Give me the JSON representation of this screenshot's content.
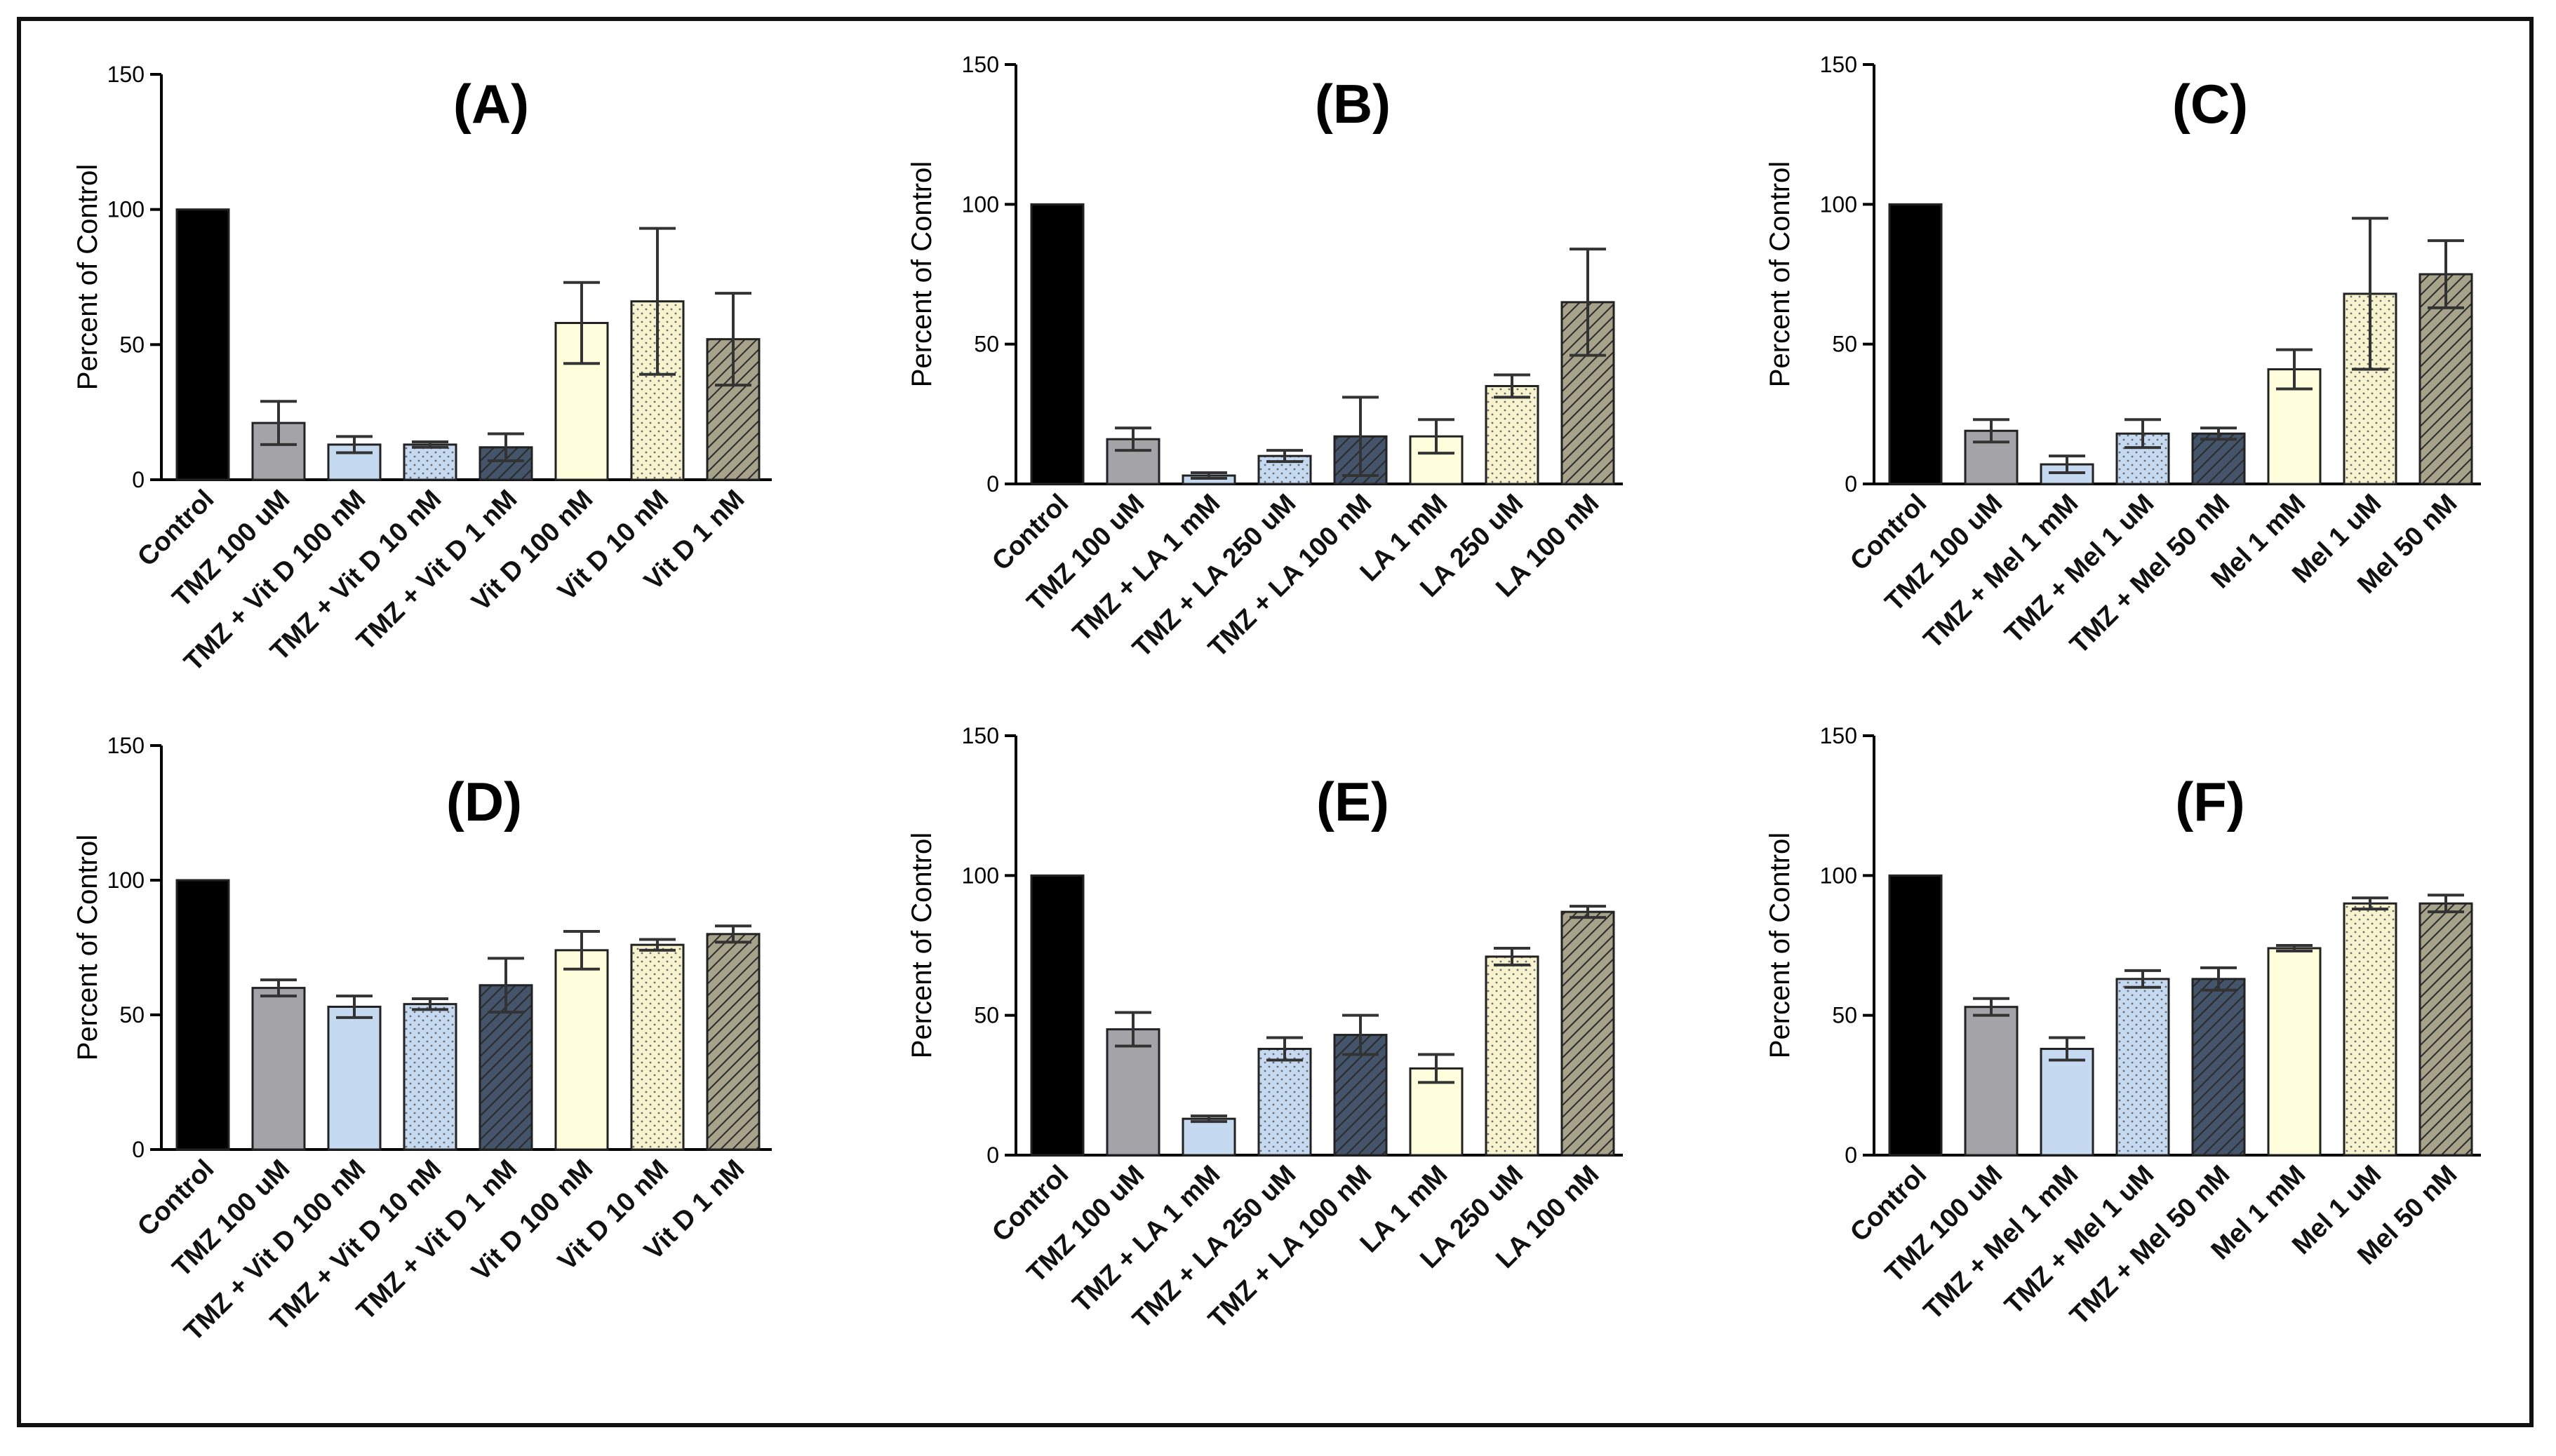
{
  "figure": {
    "ylabel": "Percent of  Control",
    "yticks": [
      0,
      50,
      100,
      150
    ],
    "ylim": [
      0,
      150
    ]
  },
  "styles": {
    "fills": [
      "#000000",
      "#a4a4a8",
      "#c5d9f1",
      "#c5d9f1",
      "#44546a",
      "#fefedc",
      "#f7f3cf",
      "#a7a28a"
    ],
    "patterns": [
      "solid",
      "solid",
      "solid",
      "dots",
      "hatch",
      "solid",
      "dots",
      "hatch"
    ],
    "stroke": "#222222",
    "errorbar": "#333333"
  },
  "chart_data": [
    {
      "type": "bar",
      "title": "(A)",
      "ylabel": "Percent of  Control",
      "ylim": [
        0,
        150
      ],
      "categories": [
        "Control",
        "TMZ 100 uM",
        "TMZ + Vit D 100 nM",
        "TMZ + Vit D 10 nM",
        "TMZ + Vit D 1 nM",
        "Vit D 100 nM",
        "Vit D 10 nM",
        "Vit D 1 nM"
      ],
      "values": [
        100,
        21,
        13,
        13,
        12,
        58,
        66,
        52
      ],
      "errors": [
        0,
        8,
        3,
        1,
        5,
        15,
        27,
        17
      ]
    },
    {
      "type": "bar",
      "title": "(B)",
      "ylabel": "Percent of  Control",
      "ylim": [
        0,
        150
      ],
      "categories": [
        "Control",
        "TMZ 100 uM",
        "TMZ + LA 1 mM",
        "TMZ + LA 250 uM",
        "TMZ + LA 100 nM",
        "LA 1 mM",
        "LA 250 uM",
        "LA 100 nM"
      ],
      "values": [
        100,
        16,
        3,
        10,
        17,
        17,
        35,
        65
      ],
      "errors": [
        0,
        4,
        1,
        2,
        14,
        6,
        4,
        19
      ]
    },
    {
      "type": "bar",
      "title": "(C)",
      "ylabel": "Percent of  Control",
      "ylim": [
        0,
        150
      ],
      "categories": [
        "Control",
        "TMZ 100 uM",
        "TMZ + Mel 1 mM",
        "TMZ + Mel 1 uM",
        "TMZ + Mel 50 nM",
        "Mel 1 mM",
        "Mel 1 uM",
        "Mel 50 nM"
      ],
      "values": [
        100,
        19,
        7,
        18,
        18,
        41,
        68,
        75
      ],
      "errors": [
        0,
        4,
        3,
        5,
        2,
        7,
        27,
        12
      ]
    },
    {
      "type": "bar",
      "title": "(D)",
      "ylabel": "Percent of  Control",
      "ylim": [
        0,
        150
      ],
      "categories": [
        "Control",
        "TMZ 100 uM",
        "TMZ + Vit D 100 nM",
        "TMZ + Vit D 10 nM",
        "TMZ + Vit D 1 nM",
        "Vit D 100 nM",
        "Vit D 10 nM",
        "Vit D 1 nM"
      ],
      "values": [
        100,
        60,
        53,
        54,
        61,
        74,
        76,
        80
      ],
      "errors": [
        0,
        3,
        4,
        2,
        10,
        7,
        2,
        3
      ]
    },
    {
      "type": "bar",
      "title": "(E)",
      "ylabel": "Percent of  Control",
      "ylim": [
        0,
        150
      ],
      "categories": [
        "Control",
        "TMZ 100 uM",
        "TMZ + LA 1 mM",
        "TMZ + LA 250 uM",
        "TMZ + LA 100 nM",
        "LA 1 mM",
        "LA 250 uM",
        "LA 100 nM"
      ],
      "values": [
        100,
        45,
        13,
        38,
        43,
        31,
        71,
        87
      ],
      "errors": [
        0,
        6,
        1,
        4,
        7,
        5,
        3,
        2
      ]
    },
    {
      "type": "bar",
      "title": "(F)",
      "ylabel": "Percent of  Control",
      "ylim": [
        0,
        150
      ],
      "categories": [
        "Control",
        "TMZ 100 uM",
        "TMZ + Mel 1 mM",
        "TMZ + Mel 1 uM",
        "TMZ + Mel 50 nM",
        "Mel 1 mM",
        "Mel 1 uM",
        "Mel 50 nM"
      ],
      "values": [
        100,
        53,
        38,
        63,
        63,
        74,
        90,
        90
      ],
      "errors": [
        0,
        3,
        4,
        3,
        4,
        1,
        2,
        3
      ]
    }
  ]
}
